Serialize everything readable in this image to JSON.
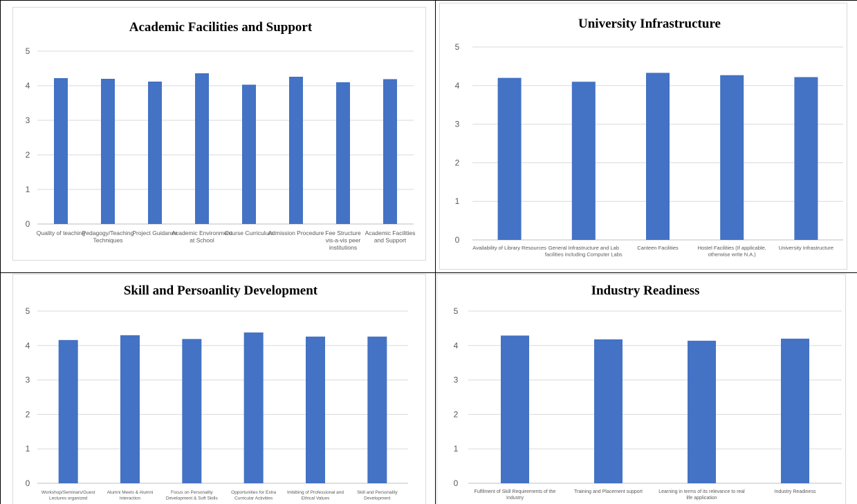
{
  "colors": {
    "bar": "#4472c4",
    "grid": "#d9d9d9",
    "text": "#595959"
  },
  "chart_data": [
    {
      "type": "bar",
      "title": "Academic Facilities and Support",
      "ylim": [
        0,
        5
      ],
      "yticks": [
        0,
        1,
        2,
        3,
        4,
        5
      ],
      "grid": true,
      "categories": [
        "Quality of teaching",
        "Pedagogy/Teaching Techniques",
        "Project Guidance",
        "Academic Environment at School",
        "Course Curriculum",
        "Admission Procedure",
        "Fee Structure vis-a-vis peer institutions",
        "Academic Facilities and Support"
      ],
      "values": [
        4.22,
        4.2,
        4.12,
        4.36,
        4.03,
        4.26,
        4.1,
        4.19
      ]
    },
    {
      "type": "bar",
      "title": "University Infrastructure",
      "ylim": [
        0,
        5
      ],
      "yticks": [
        0,
        1,
        2,
        3,
        4,
        5
      ],
      "grid": true,
      "categories": [
        "Availability of Library Resources",
        "General Infrastructure and Lab facilities including Computer Labs",
        "Canteen Facilities",
        "Hostel Facilities (If applicable, otherwise write N.A.)",
        "University Infrastructure"
      ],
      "values": [
        4.2,
        4.1,
        4.33,
        4.27,
        4.22
      ]
    },
    {
      "type": "bar",
      "title": "Skill and Persoanlity Development",
      "ylim": [
        0,
        5
      ],
      "yticks": [
        0,
        1,
        2,
        3,
        4,
        5
      ],
      "grid": true,
      "categories": [
        "Workshop/Seminars/Guest Lectures organized",
        "Alumni Meets & Alumni Interaction",
        "Focus on Personality Development & Soft Skills",
        "Opportunities for Extra Curricular Activities",
        "Imbibing of Professional and Ethical Values",
        "Skill and Personality Development"
      ],
      "values": [
        4.16,
        4.3,
        4.19,
        4.38,
        4.26,
        4.26
      ]
    },
    {
      "type": "bar",
      "title": "Industry Readiness",
      "ylim": [
        0,
        5
      ],
      "yticks": [
        0,
        1,
        2,
        3,
        4,
        5
      ],
      "grid": true,
      "categories": [
        "Fulfilment of Skill Requirements of the Industry",
        "Training and Placement support",
        "Learning in terms of its relevance to real life application",
        "Industry Readiness"
      ],
      "values": [
        4.29,
        4.18,
        4.14,
        4.2
      ]
    }
  ]
}
